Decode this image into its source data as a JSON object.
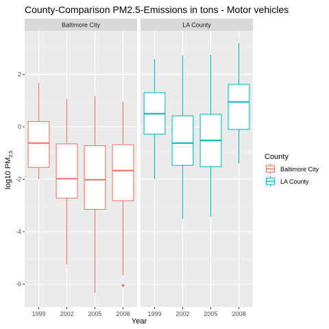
{
  "chart_data": {
    "type": "boxplot",
    "title": "County-Comparison PM2.5-Emissions in tons - Motor vehicles",
    "xlabel": "Year",
    "ylabel": "log10 PM",
    "ylabel_subscript": "2.5",
    "categories": [
      "1999",
      "2002",
      "2005",
      "2008"
    ],
    "yticks": [
      2,
      0,
      -2,
      -4,
      -6
    ],
    "ylim": [
      -6.9,
      3.4
    ],
    "grid": true,
    "legend": {
      "title": "County",
      "position": "right"
    },
    "panels": [
      {
        "name": "Baltimore City",
        "color": "#F8766D",
        "boxes": [
          {
            "year": "1999",
            "min": -2.0,
            "q1": -1.55,
            "median": -0.62,
            "q3": 0.2,
            "max": 1.68,
            "outliers": []
          },
          {
            "year": "2002",
            "min": -5.25,
            "q1": -2.72,
            "median": -1.98,
            "q3": -0.65,
            "max": 1.07,
            "outliers": []
          },
          {
            "year": "2005",
            "min": -6.33,
            "q1": -3.15,
            "median": -2.02,
            "q3": -0.72,
            "max": 1.17,
            "outliers": []
          },
          {
            "year": "2008",
            "min": -5.68,
            "q1": -2.82,
            "median": -1.67,
            "q3": -0.68,
            "max": 0.97,
            "outliers": [
              -6.05
            ]
          }
        ]
      },
      {
        "name": "LA County",
        "color": "#00BFC4",
        "boxes": [
          {
            "year": "1999",
            "min": -2.0,
            "q1": -0.28,
            "median": 0.5,
            "q3": 1.3,
            "max": 2.58,
            "outliers": []
          },
          {
            "year": "2002",
            "min": -3.5,
            "q1": -1.47,
            "median": -0.62,
            "q3": 0.42,
            "max": 2.72,
            "outliers": []
          },
          {
            "year": "2005",
            "min": -3.42,
            "q1": -1.52,
            "median": -0.52,
            "q3": 0.48,
            "max": 2.75,
            "outliers": []
          },
          {
            "year": "2008",
            "min": -1.4,
            "q1": -0.1,
            "median": 0.95,
            "q3": 1.62,
            "max": 3.2,
            "outliers": []
          }
        ]
      }
    ]
  }
}
